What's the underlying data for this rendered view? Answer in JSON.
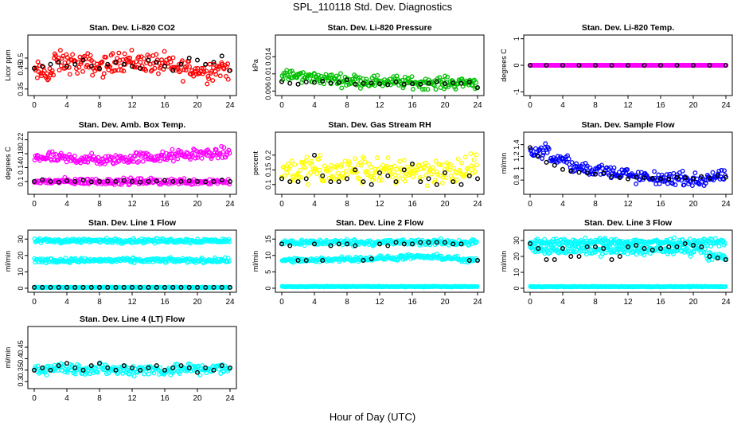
{
  "figure": {
    "title": "SPL_110118  Std. Dev. Diagnostics",
    "xlabel": "Hour of Day (UTC)"
  },
  "chart_data": [
    {
      "type": "scatter",
      "title": "Stan. Dev. Li-820 CO2",
      "ylabel": "Licor ppm",
      "xlim": [
        0,
        24
      ],
      "xticks": [
        0,
        4,
        8,
        12,
        16,
        20,
        24
      ],
      "ylim": [
        0.33,
        0.6
      ],
      "yticks": [
        0.35,
        0.45,
        0.5
      ],
      "color": "#ff0000",
      "series": [
        {
          "name": "observations",
          "color": "#ff0000",
          "base": [
            0.43,
            0.48,
            0.47,
            0.46,
            0.49,
            0.48,
            0.47,
            0.45,
            0.44,
            0.45
          ],
          "spread": 0.045
        },
        {
          "name": "hourly mean",
          "color": "#000000",
          "x": [
            0,
            1,
            2,
            3,
            4,
            5,
            6,
            7,
            8,
            9,
            10,
            11,
            12,
            13,
            14,
            15,
            16,
            17,
            18,
            19,
            20,
            21,
            22,
            23,
            24
          ],
          "y": [
            0.45,
            0.46,
            0.47,
            0.48,
            0.46,
            0.47,
            0.49,
            0.46,
            0.45,
            0.47,
            0.48,
            0.47,
            0.46,
            0.45,
            0.49,
            0.48,
            0.46,
            0.44,
            0.47,
            0.5,
            0.49,
            0.47,
            0.48,
            0.51,
            0.44
          ]
        }
      ]
    },
    {
      "type": "scatter",
      "title": "Stan. Dev. Li-820 Pressure",
      "ylabel": "kPa",
      "xlim": [
        0,
        24
      ],
      "xticks": [
        0,
        4,
        8,
        12,
        16,
        20,
        24
      ],
      "ylim": [
        0.0055,
        0.0185
      ],
      "yticks": [
        0.006,
        0.01,
        0.014
      ],
      "color": "#00c000",
      "series": [
        {
          "name": "observations",
          "color": "#00c000",
          "base": [
            0.0095,
            0.0092,
            0.0088,
            0.0085,
            0.0083,
            0.0082,
            0.008,
            0.0079,
            0.0079,
            0.008
          ],
          "spread": 0.0012
        },
        {
          "name": "hourly mean",
          "color": "#000000",
          "x": [
            0,
            1,
            2,
            3,
            4,
            5,
            6,
            7,
            8,
            9,
            10,
            11,
            12,
            13,
            14,
            15,
            16,
            17,
            18,
            19,
            20,
            21,
            22,
            23,
            24
          ],
          "y": [
            0.0082,
            0.0078,
            0.0076,
            0.0081,
            0.008,
            0.0083,
            0.0079,
            0.008,
            0.0086,
            0.0076,
            0.0078,
            0.0079,
            0.0077,
            0.0075,
            0.0081,
            0.0076,
            0.0077,
            0.0076,
            0.0078,
            0.0082,
            0.0077,
            0.0079,
            0.0078,
            0.0081,
            0.0068
          ]
        }
      ]
    },
    {
      "type": "scatter",
      "title": "Stan. Dev. Li-820 Temp.",
      "ylabel": "degrees C",
      "xlim": [
        0,
        24
      ],
      "xticks": [
        0,
        4,
        8,
        12,
        16,
        20,
        24
      ],
      "ylim": [
        -1.05,
        1.05
      ],
      "yticks": [
        -1.0,
        0.0,
        1.0
      ],
      "color": "#ff00ff",
      "series": [
        {
          "name": "observations",
          "color": "#ff00ff",
          "base": [
            0,
            0,
            0,
            0,
            0,
            0,
            0,
            0,
            0,
            0
          ],
          "spread": 0
        },
        {
          "name": "hourly mean",
          "color": "#000000",
          "x": [
            0,
            2,
            4,
            6,
            8,
            10,
            12,
            14,
            16,
            18,
            20,
            22,
            24
          ],
          "y": [
            0,
            0,
            0,
            0,
            0,
            0,
            0,
            0,
            0,
            0,
            0,
            0,
            0
          ]
        }
      ]
    },
    {
      "type": "scatter",
      "title": "Stan. Dev. Amb. Box Temp.",
      "ylabel": "degrees C",
      "xlim": [
        0,
        24
      ],
      "xticks": [
        0,
        4,
        8,
        12,
        16,
        20,
        24
      ],
      "ylim": [
        0.07,
        0.235
      ],
      "yticks": [
        0.1,
        0.14,
        0.18,
        0.22
      ],
      "color": "#ff00ff",
      "series": [
        {
          "name": "observations",
          "color": "#ff00ff",
          "base": [
            0.17,
            0.165,
            0.165,
            0.16,
            0.165,
            0.17,
            0.17,
            0.175,
            0.18,
            0.18
          ],
          "spread": 0.014
        },
        {
          "name": "observations low band",
          "color": "#ff00ff",
          "base": [
            0.1,
            0.1,
            0.1,
            0.1,
            0.1,
            0.1,
            0.1,
            0.1,
            0.1,
            0.1
          ],
          "spread": 0.008
        },
        {
          "name": "hourly mean",
          "color": "#000000",
          "x": [
            0,
            1,
            2,
            3,
            4,
            5,
            6,
            7,
            8,
            9,
            10,
            11,
            12,
            13,
            14,
            15,
            16,
            17,
            18,
            19,
            20,
            21,
            22,
            23,
            24
          ],
          "y": [
            0.1,
            0.105,
            0.1,
            0.098,
            0.102,
            0.1,
            0.104,
            0.099,
            0.1,
            0.101,
            0.1,
            0.103,
            0.1,
            0.098,
            0.1,
            0.101,
            0.103,
            0.1,
            0.1,
            0.102,
            0.1,
            0.099,
            0.1,
            0.104,
            0.1
          ]
        }
      ]
    },
    {
      "type": "scatter",
      "title": "Stan. Dev. Gas Stream RH",
      "ylabel": "percent",
      "xlim": [
        0,
        24
      ],
      "xticks": [
        0,
        4,
        8,
        12,
        16,
        20,
        24
      ],
      "ylim": [
        0.075,
        0.27
      ],
      "yticks": [
        0.1,
        0.15,
        0.2
      ],
      "color": "#ffff00",
      "series": [
        {
          "name": "observations",
          "color": "#ffff00",
          "base": [
            0.15,
            0.15,
            0.14,
            0.15,
            0.15,
            0.14,
            0.15,
            0.15,
            0.14,
            0.15
          ],
          "spread": 0.04
        },
        {
          "name": "hourly mean",
          "color": "#000000",
          "x": [
            0,
            1,
            2,
            3,
            4,
            5,
            6,
            7,
            8,
            9,
            10,
            11,
            12,
            13,
            14,
            15,
            16,
            17,
            18,
            19,
            20,
            21,
            22,
            23,
            24
          ],
          "y": [
            0.12,
            0.11,
            0.11,
            0.12,
            0.2,
            0.13,
            0.11,
            0.11,
            0.12,
            0.15,
            0.11,
            0.1,
            0.14,
            0.13,
            0.11,
            0.15,
            0.17,
            0.11,
            0.12,
            0.1,
            0.14,
            0.11,
            0.1,
            0.13,
            0.12
          ]
        }
      ]
    },
    {
      "type": "scatter",
      "title": "Stan. Dev. Sample Flow",
      "ylabel": "ml/min",
      "xlim": [
        0,
        24
      ],
      "xticks": [
        0,
        4,
        8,
        12,
        16,
        20,
        24
      ],
      "ylim": [
        0.6,
        1.57
      ],
      "yticks": [
        0.8,
        1.0,
        1.2,
        1.4
      ],
      "color": "#0000ff",
      "series": [
        {
          "name": "observations",
          "color": "#0000ff",
          "base": [
            1.3,
            1.15,
            1.02,
            0.97,
            0.93,
            0.85,
            0.82,
            0.83,
            0.8,
            0.85
          ],
          "spread": 0.09
        },
        {
          "name": "hourly mean",
          "color": "#000000",
          "x": [
            0,
            1,
            2,
            3,
            4,
            5,
            6,
            7,
            8,
            9,
            10,
            11,
            12,
            13,
            14,
            15,
            16,
            17,
            18,
            19,
            20,
            21,
            22,
            23,
            24
          ],
          "y": [
            1.35,
            1.2,
            1.1,
            1.05,
            0.98,
            0.95,
            0.93,
            0.92,
            0.9,
            0.92,
            0.86,
            0.84,
            0.82,
            0.85,
            0.84,
            0.83,
            0.82,
            0.82,
            0.85,
            0.84,
            0.82,
            0.86,
            0.83,
            0.88,
            0.85
          ]
        }
      ]
    },
    {
      "type": "scatter",
      "title": "Stan. Dev. Line 1 Flow",
      "ylabel": "ml/min",
      "xlim": [
        0,
        24
      ],
      "xticks": [
        0,
        4,
        8,
        12,
        16,
        20,
        24
      ],
      "ylim": [
        -1,
        34
      ],
      "yticks": [
        0,
        10,
        20,
        30
      ],
      "color": "#00ffff",
      "series": [
        {
          "name": "observations upper band",
          "color": "#00ffff",
          "base": [
            29,
            29,
            29,
            29,
            29,
            29,
            29,
            29,
            29,
            29
          ],
          "spread": 1.2
        },
        {
          "name": "observations middle band",
          "color": "#00ffff",
          "base": [
            17,
            17,
            17,
            17,
            17,
            17,
            17,
            17,
            17,
            17
          ],
          "spread": 1.2
        },
        {
          "name": "observations zero band",
          "color": "#00ffff",
          "base": [
            0.5,
            0.5,
            0.5,
            0.5,
            0.5,
            0.5,
            0.5,
            0.5,
            0.5,
            0.5
          ],
          "spread": 0.2
        },
        {
          "name": "hourly mean",
          "color": "#000000",
          "x": [
            0,
            1,
            2,
            3,
            4,
            5,
            6,
            7,
            8,
            9,
            10,
            11,
            12,
            13,
            14,
            15,
            16,
            17,
            18,
            19,
            20,
            21,
            22,
            23,
            24
          ],
          "y": [
            0.5,
            0.5,
            0.5,
            0.5,
            0.5,
            0.5,
            0.5,
            0.5,
            0.5,
            0.5,
            0.5,
            0.5,
            0.5,
            0.5,
            0.5,
            0.5,
            0.5,
            0.5,
            0.5,
            0.5,
            0.5,
            0.5,
            0.5,
            0.5,
            0.5
          ]
        }
      ]
    },
    {
      "type": "scatter",
      "title": "Stan. Dev. Line 2 Flow",
      "ylabel": "ml/min",
      "xlim": [
        0,
        24
      ],
      "xticks": [
        0,
        4,
        8,
        12,
        16,
        20,
        24
      ],
      "ylim": [
        -0.5,
        17
      ],
      "yticks": [
        0,
        5,
        10,
        15
      ],
      "color": "#00ffff",
      "series": [
        {
          "name": "observations upper band",
          "color": "#00ffff",
          "base": [
            14,
            14,
            14,
            14,
            14,
            14,
            14,
            14,
            14,
            14
          ],
          "spread": 0.8
        },
        {
          "name": "observations middle band",
          "color": "#00ffff",
          "base": [
            8.5,
            8.5,
            8.8,
            9,
            9,
            9.2,
            9.5,
            9.5,
            9.3,
            8.5
          ],
          "spread": 0.6
        },
        {
          "name": "observations zero band",
          "color": "#00ffff",
          "base": [
            0.5,
            0.5,
            0.5,
            0.5,
            0.5,
            0.5,
            0.5,
            0.5,
            0.5,
            0.5
          ],
          "spread": 0.1
        },
        {
          "name": "hourly mean",
          "color": "#000000",
          "x": [
            0,
            1,
            2,
            3,
            4,
            5,
            6,
            7,
            8,
            9,
            10,
            11,
            12,
            13,
            14,
            15,
            16,
            17,
            18,
            19,
            20,
            21,
            22,
            23,
            24
          ],
          "y": [
            13.5,
            13,
            8.5,
            8.5,
            13.5,
            8.5,
            13,
            13.5,
            13.5,
            13,
            8.5,
            9,
            13.5,
            13,
            14,
            13.5,
            13.5,
            14,
            14,
            14,
            14,
            13.5,
            13.5,
            8.5,
            8.5
          ]
        }
      ]
    },
    {
      "type": "scatter",
      "title": "Stan. Dev. Line 3 Flow",
      "ylabel": "ml/min",
      "xlim": [
        0,
        24
      ],
      "xticks": [
        0,
        4,
        8,
        12,
        16,
        20,
        24
      ],
      "ylim": [
        -1,
        35
      ],
      "yticks": [
        0,
        10,
        20,
        30
      ],
      "color": "#00ffff",
      "series": [
        {
          "name": "observations upper band",
          "color": "#00ffff",
          "base": [
            29,
            29,
            29,
            29,
            29,
            29,
            29,
            29,
            29,
            29
          ],
          "spread": 1.8
        },
        {
          "name": "observations middle band",
          "color": "#00ffff",
          "base": [
            24,
            24,
            24,
            24,
            24,
            24,
            24,
            24,
            24,
            20
          ],
          "spread": 2.5
        },
        {
          "name": "observations zero band",
          "color": "#00ffff",
          "base": [
            1,
            1,
            1,
            1,
            1,
            1,
            1,
            1,
            1,
            1
          ],
          "spread": 0.2
        },
        {
          "name": "hourly mean",
          "color": "#000000",
          "x": [
            0,
            1,
            2,
            3,
            4,
            5,
            6,
            7,
            8,
            9,
            10,
            11,
            12,
            13,
            14,
            15,
            16,
            17,
            18,
            19,
            20,
            21,
            22,
            23,
            24
          ],
          "y": [
            28,
            25,
            18,
            18,
            25,
            20,
            20,
            26,
            26,
            25,
            18,
            20,
            26,
            27,
            25,
            24,
            25,
            26,
            26,
            28,
            27,
            26,
            20,
            19,
            18
          ]
        }
      ]
    },
    {
      "type": "scatter",
      "title": "Stan. Dev. Line 4 (LT) Flow",
      "ylabel": "ml/min",
      "xlim": [
        0,
        24
      ],
      "xticks": [
        0,
        4,
        8,
        12,
        16,
        20,
        24
      ],
      "ylim": [
        0.28,
        0.53
      ],
      "yticks": [
        0.3,
        0.35,
        0.4,
        0.45
      ],
      "color": "#00ffff",
      "series": [
        {
          "name": "observations",
          "color": "#00ffff",
          "base": [
            0.355,
            0.36,
            0.355,
            0.355,
            0.35,
            0.355,
            0.35,
            0.355,
            0.355,
            0.355
          ],
          "spread": 0.022
        },
        {
          "name": "hourly mean",
          "color": "#000000",
          "x": [
            0,
            1,
            2,
            3,
            4,
            5,
            6,
            7,
            8,
            9,
            10,
            11,
            12,
            13,
            14,
            15,
            16,
            17,
            18,
            19,
            20,
            21,
            22,
            23,
            24
          ],
          "y": [
            0.35,
            0.36,
            0.35,
            0.37,
            0.38,
            0.36,
            0.35,
            0.37,
            0.38,
            0.36,
            0.35,
            0.37,
            0.36,
            0.35,
            0.36,
            0.37,
            0.35,
            0.36,
            0.37,
            0.36,
            0.34,
            0.36,
            0.35,
            0.37,
            0.36
          ]
        }
      ]
    }
  ]
}
